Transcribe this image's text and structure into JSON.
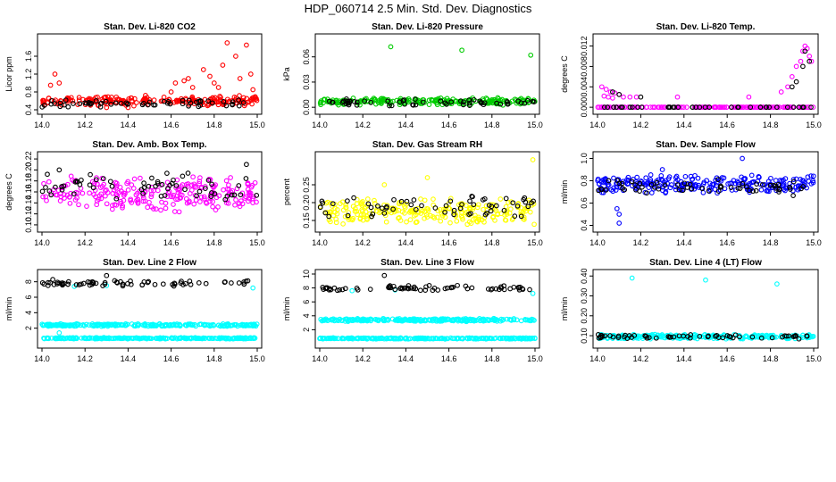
{
  "title": "HDP_060714  2.5 Min. Std. Dev. Diagnostics",
  "chart_data": [
    {
      "type": "scatter",
      "title": "Stan. Dev. Li-820 CO2",
      "ylabel": "Licor ppm",
      "xlim": [
        14.0,
        15.0
      ],
      "ylim": [
        0.4,
        2.0
      ],
      "xticks": [
        "14.0",
        "14.2",
        "14.4",
        "14.6",
        "14.8",
        "15.0"
      ],
      "yticks": [
        {
          "v": 0.4,
          "l": "0.4"
        },
        {
          "v": 0.8,
          "l": "0.8"
        },
        {
          "v": 1.2,
          "l": "1.2"
        },
        {
          "v": 1.6,
          "l": "1.6"
        }
      ],
      "series": [
        {
          "name": "red",
          "color": "#ff0000",
          "base": 0.6,
          "spread": 0.08,
          "n": 220,
          "extra": [
            [
              14.04,
              0.95
            ],
            [
              14.06,
              1.2
            ],
            [
              14.08,
              1.0
            ],
            [
              14.6,
              0.8
            ],
            [
              14.62,
              1.0
            ],
            [
              14.66,
              1.05
            ],
            [
              14.68,
              1.1
            ],
            [
              14.7,
              0.9
            ],
            [
              14.75,
              1.3
            ],
            [
              14.78,
              1.15
            ],
            [
              14.8,
              1.0
            ],
            [
              14.82,
              0.9
            ],
            [
              14.84,
              1.4
            ],
            [
              14.86,
              1.9
            ],
            [
              14.9,
              1.6
            ],
            [
              14.92,
              1.1
            ],
            [
              14.95,
              1.85
            ],
            [
              14.97,
              1.2
            ],
            [
              14.98,
              0.85
            ],
            [
              14.4,
              0.45
            ],
            [
              14.3,
              0.45
            ]
          ]
        },
        {
          "name": "black",
          "color": "#000000",
          "base": 0.55,
          "spread": 0.06,
          "n": 60,
          "extra": []
        }
      ]
    },
    {
      "type": "scatter",
      "title": "Stan. Dev. Li-820 Pressure",
      "ylabel": "kPa",
      "xlim": [
        14.0,
        15.0
      ],
      "ylim": [
        -0.003,
        0.082
      ],
      "xticks": [
        "14.0",
        "14.2",
        "14.4",
        "14.6",
        "14.8",
        "15.0"
      ],
      "yticks": [
        {
          "v": 0.0,
          "l": "0.00"
        },
        {
          "v": 0.03,
          "l": "0.03"
        },
        {
          "v": 0.06,
          "l": "0.06"
        }
      ],
      "series": [
        {
          "name": "green",
          "color": "#00cc00",
          "base": 0.007,
          "spread": 0.003,
          "n": 220,
          "extra": [
            [
              14.33,
              0.072
            ],
            [
              14.66,
              0.068
            ],
            [
              14.98,
              0.062
            ]
          ]
        },
        {
          "name": "black",
          "color": "#000000",
          "base": 0.006,
          "spread": 0.003,
          "n": 60,
          "extra": []
        }
      ]
    },
    {
      "type": "scatter",
      "title": "Stan. Dev. Li-820 Temp.",
      "ylabel": "degrees C",
      "xlim": [
        14.0,
        15.0
      ],
      "ylim": [
        -0.0005,
        0.0135
      ],
      "xticks": [
        "14.0",
        "14.2",
        "14.4",
        "14.6",
        "14.8",
        "15.0"
      ],
      "yticks": [
        {
          "v": 0.0,
          "l": "0.000"
        },
        {
          "v": 0.004,
          "l": "0.004"
        },
        {
          "v": 0.008,
          "l": "0.008"
        },
        {
          "v": 0.012,
          "l": "0.012"
        }
      ],
      "series": [
        {
          "name": "magenta",
          "color": "#ff00ff",
          "base": 0.0,
          "spread": 0.0,
          "n": 160,
          "extra": [
            [
              14.02,
              0.004
            ],
            [
              14.04,
              0.0035
            ],
            [
              14.06,
              0.003
            ],
            [
              14.08,
              0.0028
            ],
            [
              14.1,
              0.0025
            ],
            [
              14.03,
              0.0022
            ],
            [
              14.05,
              0.002
            ],
            [
              14.07,
              0.0018
            ],
            [
              14.12,
              0.002
            ],
            [
              14.15,
              0.002
            ],
            [
              14.18,
              0.002
            ],
            [
              14.37,
              0.002
            ],
            [
              14.7,
              0.002
            ],
            [
              14.85,
              0.003
            ],
            [
              14.88,
              0.004
            ],
            [
              14.9,
              0.006
            ],
            [
              14.92,
              0.008
            ],
            [
              14.94,
              0.009
            ],
            [
              14.95,
              0.011
            ],
            [
              14.96,
              0.012
            ],
            [
              14.97,
              0.0115
            ],
            [
              14.98,
              0.01
            ],
            [
              14.99,
              0.009
            ]
          ]
        },
        {
          "name": "black",
          "color": "#000000",
          "base": 0.0,
          "spread": 0.0,
          "n": 40,
          "extra": [
            [
              14.07,
              0.003
            ],
            [
              14.1,
              0.0025
            ],
            [
              14.2,
              0.002
            ],
            [
              14.9,
              0.004
            ],
            [
              14.92,
              0.005
            ],
            [
              14.95,
              0.008
            ],
            [
              14.96,
              0.011
            ],
            [
              14.98,
              0.009
            ]
          ]
        }
      ]
    },
    {
      "type": "scatter",
      "title": "Stan. Dev. Amb. Box Temp.",
      "ylabel": "degrees C",
      "xlim": [
        14.0,
        15.0
      ],
      "ylim": [
        0.095,
        0.225
      ],
      "xticks": [
        "14.0",
        "14.2",
        "14.4",
        "14.6",
        "14.8",
        "15.0"
      ],
      "yticks": [
        {
          "v": 0.1,
          "l": "0.10"
        },
        {
          "v": 0.12,
          "l": "0.12"
        },
        {
          "v": 0.14,
          "l": "0.14"
        },
        {
          "v": 0.16,
          "l": "0.16"
        },
        {
          "v": 0.18,
          "l": "0.18"
        },
        {
          "v": 0.2,
          "l": "0.20"
        },
        {
          "v": 0.22,
          "l": "0.22"
        }
      ],
      "series": [
        {
          "name": "magenta",
          "color": "#ff00ff",
          "base": 0.155,
          "spread": 0.022,
          "n": 240,
          "extra": []
        },
        {
          "name": "black",
          "color": "#000000",
          "base": 0.17,
          "spread": 0.018,
          "n": 60,
          "extra": [
            [
              14.95,
              0.21
            ],
            [
              14.08,
              0.2
            ]
          ]
        }
      ]
    },
    {
      "type": "scatter",
      "title": "Stan. Dev. Gas Stream RH",
      "ylabel": "percent",
      "xlim": [
        14.0,
        15.0
      ],
      "ylim": [
        0.13,
        0.33
      ],
      "xticks": [
        "14.0",
        "14.2",
        "14.4",
        "14.6",
        "14.8",
        "15.0"
      ],
      "yticks": [
        {
          "v": 0.15,
          "l": "0.15"
        },
        {
          "v": 0.2,
          "l": "0.20"
        },
        {
          "v": 0.25,
          "l": "0.25"
        }
      ],
      "series": [
        {
          "name": "yellow",
          "color": "#ffff00",
          "base": 0.175,
          "spread": 0.025,
          "n": 240,
          "extra": [
            [
              14.99,
              0.32
            ],
            [
              14.5,
              0.27
            ],
            [
              14.3,
              0.25
            ]
          ]
        },
        {
          "name": "black",
          "color": "#000000",
          "base": 0.19,
          "spread": 0.022,
          "n": 60,
          "extra": []
        }
      ]
    },
    {
      "type": "scatter",
      "title": "Stan. Dev. Sample Flow",
      "ylabel": "ml/min",
      "xlim": [
        14.0,
        15.0
      ],
      "ylim": [
        0.38,
        1.02
      ],
      "xticks": [
        "14.0",
        "14.2",
        "14.4",
        "14.6",
        "14.8",
        "15.0"
      ],
      "yticks": [
        {
          "v": 0.4,
          "l": "0.4"
        },
        {
          "v": 0.6,
          "l": "0.6"
        },
        {
          "v": 0.8,
          "l": "0.8"
        },
        {
          "v": 1.0,
          "l": "1.0"
        }
      ],
      "series": [
        {
          "name": "blue",
          "color": "#0000ff",
          "base": 0.77,
          "spread": 0.06,
          "n": 240,
          "extra": [
            [
              14.1,
              0.42
            ],
            [
              14.1,
              0.5
            ],
            [
              14.09,
              0.55
            ],
            [
              14.67,
              1.0
            ],
            [
              14.3,
              0.9
            ]
          ]
        },
        {
          "name": "black",
          "color": "#000000",
          "base": 0.74,
          "spread": 0.05,
          "n": 60,
          "extra": []
        }
      ]
    },
    {
      "type": "scatter",
      "title": "Stan. Dev. Line 2 Flow",
      "ylabel": "ml/min",
      "xlim": [
        14.0,
        15.0
      ],
      "ylim": [
        0.0,
        9.0
      ],
      "xticks": [
        "14.0",
        "14.2",
        "14.4",
        "14.6",
        "14.8",
        "15.0"
      ],
      "yticks": [
        {
          "v": 2,
          "l": "2"
        },
        {
          "v": 4,
          "l": "4"
        },
        {
          "v": 6,
          "l": "6"
        },
        {
          "v": 8,
          "l": "8"
        }
      ],
      "series": [
        {
          "name": "cyan-mid",
          "color": "#00ffff",
          "base": 2.4,
          "spread": 0.12,
          "n": 260,
          "extra": [
            [
              14.08,
              1.4
            ],
            [
              14.15,
              7.4
            ],
            [
              14.3,
              7.5
            ],
            [
              14.98,
              7.2
            ]
          ]
        },
        {
          "name": "cyan-low",
          "color": "#00ffff",
          "base": 0.7,
          "spread": 0.06,
          "n": 260,
          "extra": []
        },
        {
          "name": "black",
          "color": "#000000",
          "base": 7.8,
          "spread": 0.25,
          "n": 70,
          "extra": [
            [
              14.3,
              8.8
            ],
            [
              14.05,
              8.3
            ]
          ]
        }
      ]
    },
    {
      "type": "scatter",
      "title": "Stan. Dev. Line 3 Flow",
      "ylabel": "ml/min",
      "xlim": [
        14.0,
        15.0
      ],
      "ylim": [
        0.0,
        10.0
      ],
      "xticks": [
        "14.0",
        "14.2",
        "14.4",
        "14.6",
        "14.8",
        "15.0"
      ],
      "yticks": [
        {
          "v": 2,
          "l": "2"
        },
        {
          "v": 4,
          "l": "4"
        },
        {
          "v": 6,
          "l": "6"
        },
        {
          "v": 8,
          "l": "8"
        },
        {
          "v": 10,
          "l": "10"
        }
      ],
      "series": [
        {
          "name": "cyan-mid",
          "color": "#00ffff",
          "base": 3.4,
          "spread": 0.15,
          "n": 260,
          "extra": [
            [
              14.15,
              7.6
            ],
            [
              14.35,
              7.7
            ],
            [
              14.99,
              7.2
            ]
          ]
        },
        {
          "name": "cyan-low",
          "color": "#00ffff",
          "base": 0.75,
          "spread": 0.06,
          "n": 260,
          "extra": []
        },
        {
          "name": "black",
          "color": "#000000",
          "base": 8.0,
          "spread": 0.3,
          "n": 70,
          "extra": [
            [
              14.3,
              9.8
            ]
          ]
        }
      ]
    },
    {
      "type": "scatter",
      "title": "Stan. Dev. Line 4 (LT) Flow",
      "ylabel": "ml/min",
      "xlim": [
        14.0,
        15.0
      ],
      "ylim": [
        0.06,
        0.41
      ],
      "xticks": [
        "14.0",
        "14.2",
        "14.4",
        "14.6",
        "14.8",
        "15.0"
      ],
      "yticks": [
        {
          "v": 0.1,
          "l": "0.10"
        },
        {
          "v": 0.2,
          "l": "0.20"
        },
        {
          "v": 0.3,
          "l": "0.30"
        },
        {
          "v": 0.4,
          "l": "0.40"
        }
      ],
      "series": [
        {
          "name": "cyan",
          "color": "#00ffff",
          "base": 0.095,
          "spread": 0.008,
          "n": 260,
          "extra": [
            [
              14.16,
              0.39
            ],
            [
              14.5,
              0.38
            ],
            [
              14.83,
              0.36
            ]
          ]
        },
        {
          "name": "black",
          "color": "#000000",
          "base": 0.095,
          "spread": 0.008,
          "n": 60,
          "extra": []
        }
      ]
    }
  ]
}
